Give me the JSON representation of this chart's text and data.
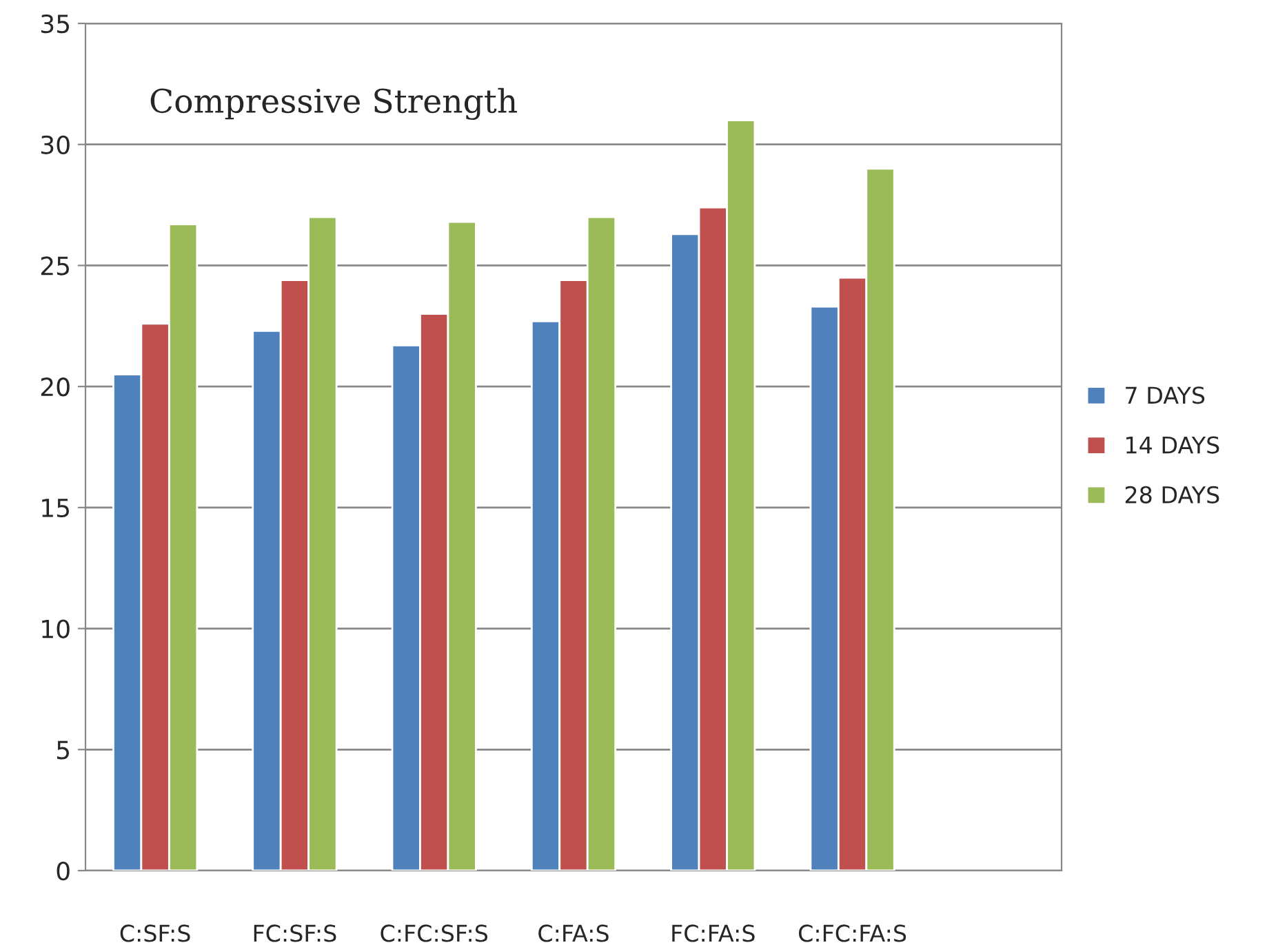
{
  "chart_data": {
    "type": "bar",
    "title": "Compressive Strength",
    "categories": [
      "C:SF:S",
      "FC:SF:S",
      "C:FC:SF:S",
      "C:FA:S",
      "FC:FA:S",
      "C:FC:FA:S",
      null
    ],
    "series": [
      {
        "name": "7 DAYS",
        "color": "#4f81bd",
        "values": [
          20.5,
          22.3,
          21.7,
          22.7,
          26.3,
          23.3,
          null
        ]
      },
      {
        "name": "14 DAYS",
        "color": "#c0504d",
        "values": [
          22.6,
          24.4,
          23.0,
          24.4,
          27.4,
          24.5,
          null
        ]
      },
      {
        "name": "28 DAYS",
        "color": "#9bbb59",
        "values": [
          26.7,
          27.0,
          26.8,
          27.0,
          31.0,
          29.0,
          null
        ]
      }
    ],
    "ylim": [
      0,
      35
    ],
    "yticks": [
      0,
      5,
      10,
      15,
      20,
      25,
      30,
      35
    ],
    "grid": "y",
    "legend": "right"
  }
}
